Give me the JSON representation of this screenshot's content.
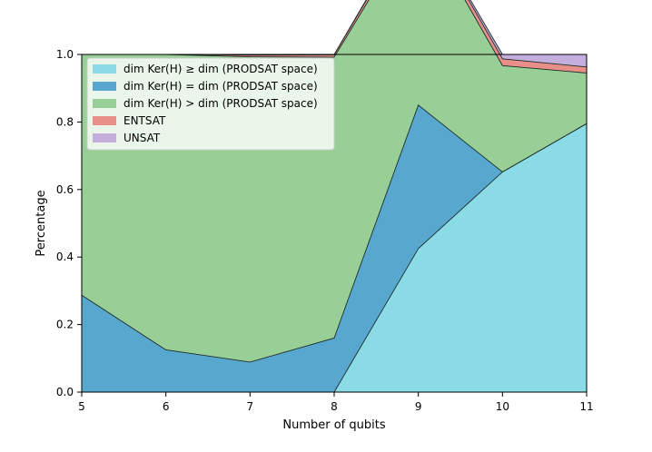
{
  "chart_data": {
    "type": "area",
    "xlabel": "Number of qubits",
    "ylabel": "Percentage",
    "xlim": [
      5,
      11
    ],
    "ylim": [
      0,
      1
    ],
    "x": [
      5,
      6,
      7,
      8,
      9,
      10,
      11
    ],
    "x_ticks": [
      "5",
      "6",
      "7",
      "8",
      "9",
      "10",
      "11"
    ],
    "y_ticks": [
      "0.0",
      "0.2",
      "0.4",
      "0.6",
      "0.8",
      "1.0"
    ],
    "grid": false,
    "legend_position": "top-left",
    "series": [
      {
        "name": "dim Ker(H) ≥ dim (PRODSAT space)",
        "color": "#8adbe6",
        "values": [
          0,
          0,
          0,
          0,
          0.425,
          0.652,
          0.795
        ]
      },
      {
        "name": "dim Ker(H) = dim (PRODSAT space)",
        "color": "#57a7cf",
        "values": [
          0.287,
          0.125,
          0.089,
          0.16,
          0.425,
          0,
          0
        ]
      },
      {
        "name": "dim Ker(H) >  dim (PRODSAT space)",
        "color": "#97cf96",
        "values": [
          0.713,
          0.875,
          0.904,
          0.832,
          0.553,
          0.315,
          0.15
        ]
      },
      {
        "name": "ENTSAT",
        "color": "#e98f8a",
        "values": [
          0,
          0,
          0.005,
          0.007,
          0.018,
          0.02,
          0.018
        ]
      },
      {
        "name": "UNSAT",
        "color": "#c4aedb",
        "values": [
          0,
          0,
          0.002,
          0.001,
          0.004,
          0.013,
          0.037
        ]
      }
    ]
  }
}
